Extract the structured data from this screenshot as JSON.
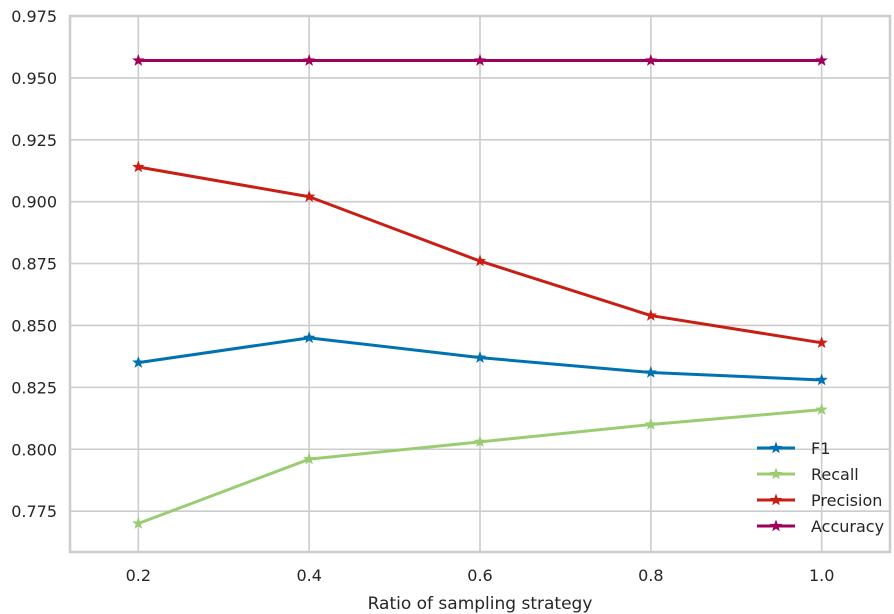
{
  "chart_data": {
    "type": "line",
    "title": "",
    "xlabel": "Ratio of sampling strategy",
    "ylabel": "",
    "x": [
      0.2,
      0.4,
      0.6,
      0.8,
      1.0
    ],
    "xticks": [
      "0.2",
      "0.4",
      "0.6",
      "0.8",
      "1.0"
    ],
    "yticks": [
      "0.775",
      "0.800",
      "0.825",
      "0.850",
      "0.875",
      "0.900",
      "0.925",
      "0.950",
      "0.975"
    ],
    "xlim": [
      0.12,
      1.08
    ],
    "ylim": [
      0.7585,
      0.975
    ],
    "grid": true,
    "legend_position": "lower-right",
    "marker": "star",
    "series": [
      {
        "name": "F1",
        "color": "#0072B2",
        "values": [
          0.835,
          0.845,
          0.837,
          0.831,
          0.828
        ]
      },
      {
        "name": "Recall",
        "color": "#9ACD73",
        "values": [
          0.77,
          0.796,
          0.803,
          0.81,
          0.816
        ]
      },
      {
        "name": "Precision",
        "color": "#C81E14",
        "values": [
          0.914,
          0.902,
          0.876,
          0.854,
          0.843
        ]
      },
      {
        "name": "Accuracy",
        "color": "#A0005A",
        "values": [
          0.957,
          0.957,
          0.957,
          0.957,
          0.957
        ]
      }
    ]
  }
}
